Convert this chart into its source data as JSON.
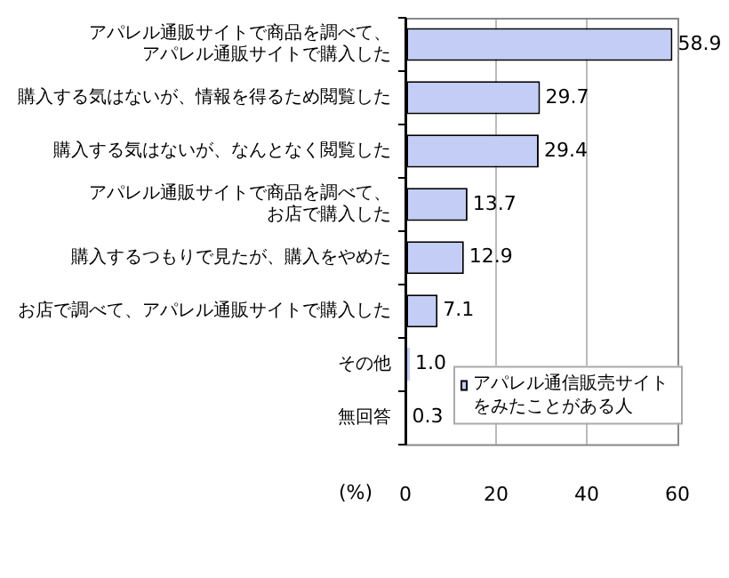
{
  "chart_data": {
    "type": "bar",
    "orientation": "horizontal",
    "xlabel": "(%)",
    "categories": [
      "アパレル通販サイトで商品を調べて、アパレル通販サイトで購入した",
      "購入する気はないが、情報を得るため閲覧した",
      "購入する気はないが、なんとなく閲覧した",
      "アパレル通販サイトで商品を調べて、お店で購入した",
      "購入するつもりで見たが、購入をやめた",
      "お店で調べて、アパレル通販サイトで購入した",
      "その他",
      "無回答"
    ],
    "series": [
      {
        "name": "アパレル通信販売サイトをみたことがある人",
        "color": "#c3cdf5",
        "values": [
          58.9,
          29.7,
          29.4,
          13.7,
          12.9,
          7.1,
          1.0,
          0.3
        ]
      }
    ],
    "value_labels": [
      "58.9",
      "29.7",
      "29.4",
      "13.7",
      "12.9",
      "7.1",
      "1.0",
      "0.3"
    ],
    "xlim": [
      0,
      60
    ],
    "xticks": [
      0,
      20,
      40,
      60
    ],
    "grid": "x",
    "legend": "bottom right"
  }
}
